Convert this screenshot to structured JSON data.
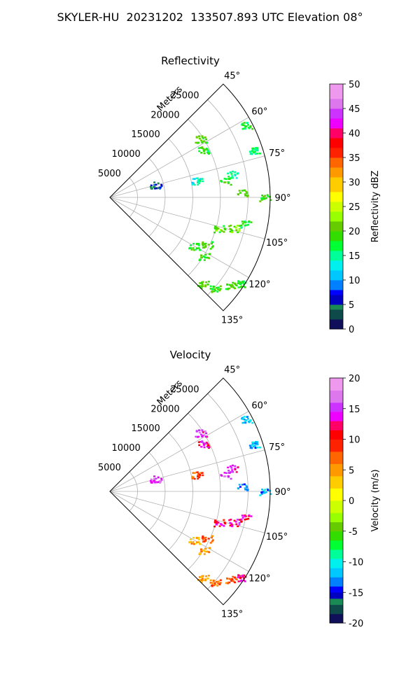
{
  "suptitle": "SKYLER-HU  20231202  133507.893 UTC Elevation 08°",
  "chart_data": [
    {
      "type": "polar-sector",
      "title": "Reflectivity",
      "range_axis_label": "Meters",
      "range_ticks": [
        5000,
        10000,
        15000,
        20000,
        25000
      ],
      "range_max": 29000,
      "azimuth_range": [
        45,
        135
      ],
      "azimuth_labels": [
        "45°",
        "60°",
        "75°",
        "90°",
        "105°",
        "120°",
        "135°"
      ],
      "colorbar": {
        "label": "Reflectivity dBZ",
        "min": 0,
        "max": 50,
        "ticks": [
          0,
          5,
          10,
          15,
          20,
          25,
          30,
          35,
          40,
          45,
          50
        ],
        "stops": [
          [
            0,
            "#10105a"
          ],
          [
            2,
            "#0f4a4a"
          ],
          [
            4,
            "#1a8a55"
          ],
          [
            5,
            "#0000c0"
          ],
          [
            7,
            "#0000ff"
          ],
          [
            8,
            "#0080ff"
          ],
          [
            10,
            "#00c8ff"
          ],
          [
            12,
            "#00f0f0"
          ],
          [
            14,
            "#00ff99"
          ],
          [
            16,
            "#00ff33"
          ],
          [
            18,
            "#33dd00"
          ],
          [
            20,
            "#66cc00"
          ],
          [
            22,
            "#99ff00"
          ],
          [
            24,
            "#ccff00"
          ],
          [
            26,
            "#ffff00"
          ],
          [
            28,
            "#ffcc00"
          ],
          [
            31,
            "#ff9900"
          ],
          [
            33,
            "#ff6600"
          ],
          [
            35,
            "#ff2200"
          ],
          [
            37,
            "#ff0000"
          ],
          [
            39,
            "#ff0066"
          ],
          [
            41,
            "#ee00ff"
          ],
          [
            43,
            "#cc33ff"
          ],
          [
            45,
            "#dd77ee"
          ],
          [
            47,
            "#ee99ee"
          ],
          [
            50,
            "#ffe8ff"
          ]
        ]
      },
      "echoes": [
        {
          "az": 57,
          "r": 19500,
          "value": 20
        },
        {
          "az": 63,
          "r": 19000,
          "value": 18
        },
        {
          "az": 62,
          "r": 28000,
          "value": 17
        },
        {
          "az": 72,
          "r": 27500,
          "value": 16
        },
        {
          "az": 74,
          "r": 8500,
          "value": 6
        },
        {
          "az": 79,
          "r": 16000,
          "value": 14
        },
        {
          "az": 79,
          "r": 22500,
          "value": 15
        },
        {
          "az": 82,
          "r": 21000,
          "value": 18
        },
        {
          "az": 88,
          "r": 24000,
          "value": 20
        },
        {
          "az": 90,
          "r": 28000,
          "value": 19
        },
        {
          "az": 101,
          "r": 25000,
          "value": 17
        },
        {
          "az": 104,
          "r": 23000,
          "value": 21
        },
        {
          "az": 106,
          "r": 20500,
          "value": 20
        },
        {
          "az": 116,
          "r": 19500,
          "value": 19
        },
        {
          "az": 120,
          "r": 17500,
          "value": 18
        },
        {
          "az": 122,
          "r": 20000,
          "value": 19
        },
        {
          "az": 123,
          "r": 28500,
          "value": 18
        },
        {
          "az": 126,
          "r": 27000,
          "value": 20
        },
        {
          "az": 131,
          "r": 25000,
          "value": 19
        },
        {
          "az": 133,
          "r": 23000,
          "value": 19
        }
      ]
    },
    {
      "type": "polar-sector",
      "title": "Velocity",
      "range_axis_label": "Meters",
      "range_ticks": [
        5000,
        10000,
        15000,
        20000,
        25000
      ],
      "range_max": 29000,
      "azimuth_range": [
        45,
        135
      ],
      "azimuth_labels": [
        "45°",
        "60°",
        "75°",
        "90°",
        "105°",
        "120°",
        "135°"
      ],
      "colorbar": {
        "label": "Velocity (m/s)",
        "min": -20,
        "max": 20,
        "ticks": [
          -20,
          -15,
          -10,
          -5,
          0,
          5,
          10,
          15,
          20
        ],
        "stops": [
          [
            -20,
            "#10105a"
          ],
          [
            -18.5,
            "#0f4a4a"
          ],
          [
            -17,
            "#1a8a55"
          ],
          [
            -16,
            "#0000c0"
          ],
          [
            -15,
            "#0000ff"
          ],
          [
            -14,
            "#0080ff"
          ],
          [
            -12.5,
            "#00c8ff"
          ],
          [
            -11,
            "#00f0f0"
          ],
          [
            -9.5,
            "#00ff99"
          ],
          [
            -8,
            "#00ff33"
          ],
          [
            -6.5,
            "#33dd00"
          ],
          [
            -5,
            "#66cc00"
          ],
          [
            -3.5,
            "#99ff00"
          ],
          [
            -2,
            "#ccff00"
          ],
          [
            0,
            "#ffff00"
          ],
          [
            2,
            "#ffcc00"
          ],
          [
            4,
            "#ff9900"
          ],
          [
            6,
            "#ff6600"
          ],
          [
            8,
            "#ff2200"
          ],
          [
            10,
            "#ff0000"
          ],
          [
            11.5,
            "#ff0066"
          ],
          [
            13,
            "#ee00ff"
          ],
          [
            14.5,
            "#cc33ff"
          ],
          [
            16,
            "#dd77ee"
          ],
          [
            18,
            "#ee99ee"
          ],
          [
            20,
            "#ffe8ff"
          ]
        ]
      },
      "echoes": [
        {
          "az": 57,
          "r": 19500,
          "value": 15
        },
        {
          "az": 63,
          "r": 19000,
          "value": 13
        },
        {
          "az": 62,
          "r": 28000,
          "value": -12
        },
        {
          "az": 72,
          "r": 27500,
          "value": -12
        },
        {
          "az": 74,
          "r": 8500,
          "value": 15
        },
        {
          "az": 79,
          "r": 16000,
          "value": 8
        },
        {
          "az": 79,
          "r": 22500,
          "value": 14
        },
        {
          "az": 82,
          "r": 21000,
          "value": 15
        },
        {
          "az": 88,
          "r": 24000,
          "value": -13
        },
        {
          "az": 90,
          "r": 28000,
          "value": -12
        },
        {
          "az": 101,
          "r": 25000,
          "value": 12
        },
        {
          "az": 104,
          "r": 23000,
          "value": 13
        },
        {
          "az": 106,
          "r": 20500,
          "value": 12
        },
        {
          "az": 116,
          "r": 19500,
          "value": 7
        },
        {
          "az": 120,
          "r": 17500,
          "value": 4
        },
        {
          "az": 122,
          "r": 20000,
          "value": 5
        },
        {
          "az": 123,
          "r": 28500,
          "value": 13
        },
        {
          "az": 126,
          "r": 27000,
          "value": 8
        },
        {
          "az": 131,
          "r": 25000,
          "value": 7
        },
        {
          "az": 133,
          "r": 23000,
          "value": 4
        }
      ]
    }
  ]
}
